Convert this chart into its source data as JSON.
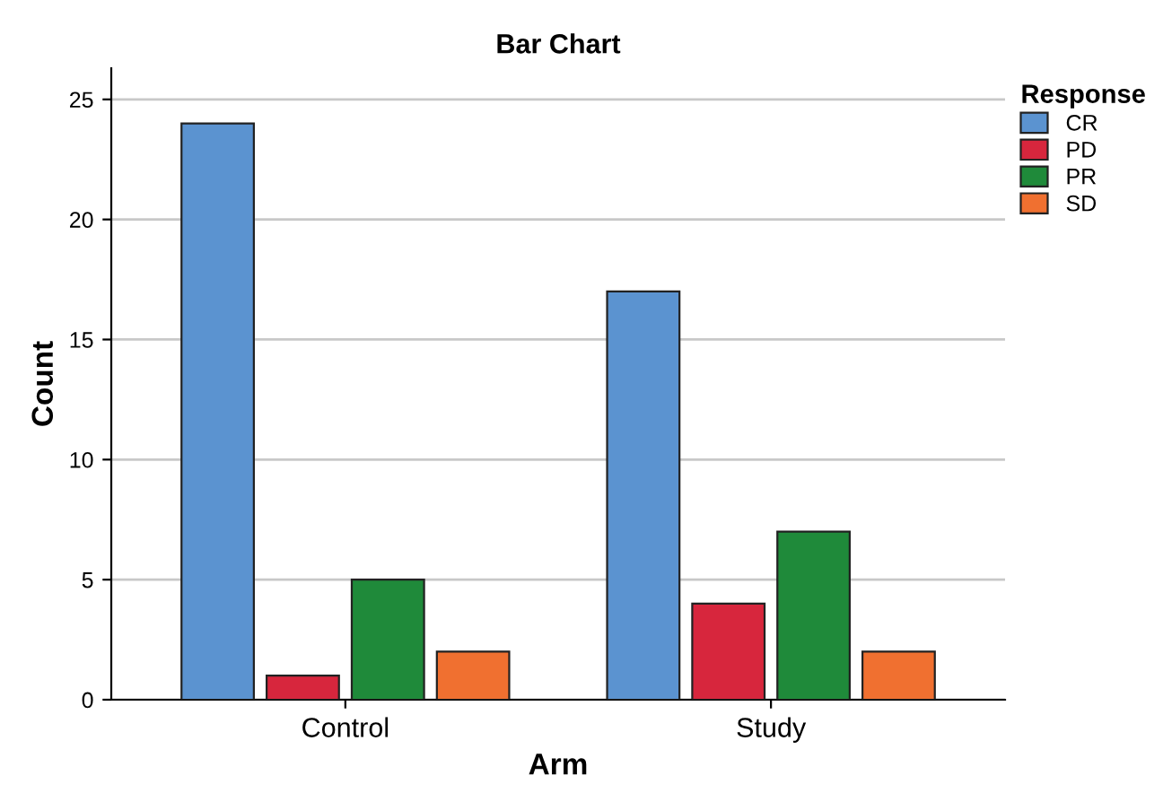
{
  "chart_data": {
    "type": "bar",
    "title": "Bar Chart",
    "xlabel": "Arm",
    "ylabel": "Count",
    "legend_title": "Response",
    "categories": [
      "Control",
      "Study"
    ],
    "series": [
      {
        "name": "CR",
        "color": "#5b93d0",
        "values": [
          24,
          17
        ]
      },
      {
        "name": "PD",
        "color": "#d7263d",
        "values": [
          1,
          4
        ]
      },
      {
        "name": "PR",
        "color": "#1f8a3a",
        "values": [
          5,
          7
        ]
      },
      {
        "name": "SD",
        "color": "#f07030",
        "values": [
          2,
          2
        ]
      }
    ],
    "ylim": [
      0,
      26.3
    ],
    "yticks": [
      0,
      5,
      10,
      15,
      20,
      25
    ],
    "grid": "y",
    "legend": "top right"
  }
}
